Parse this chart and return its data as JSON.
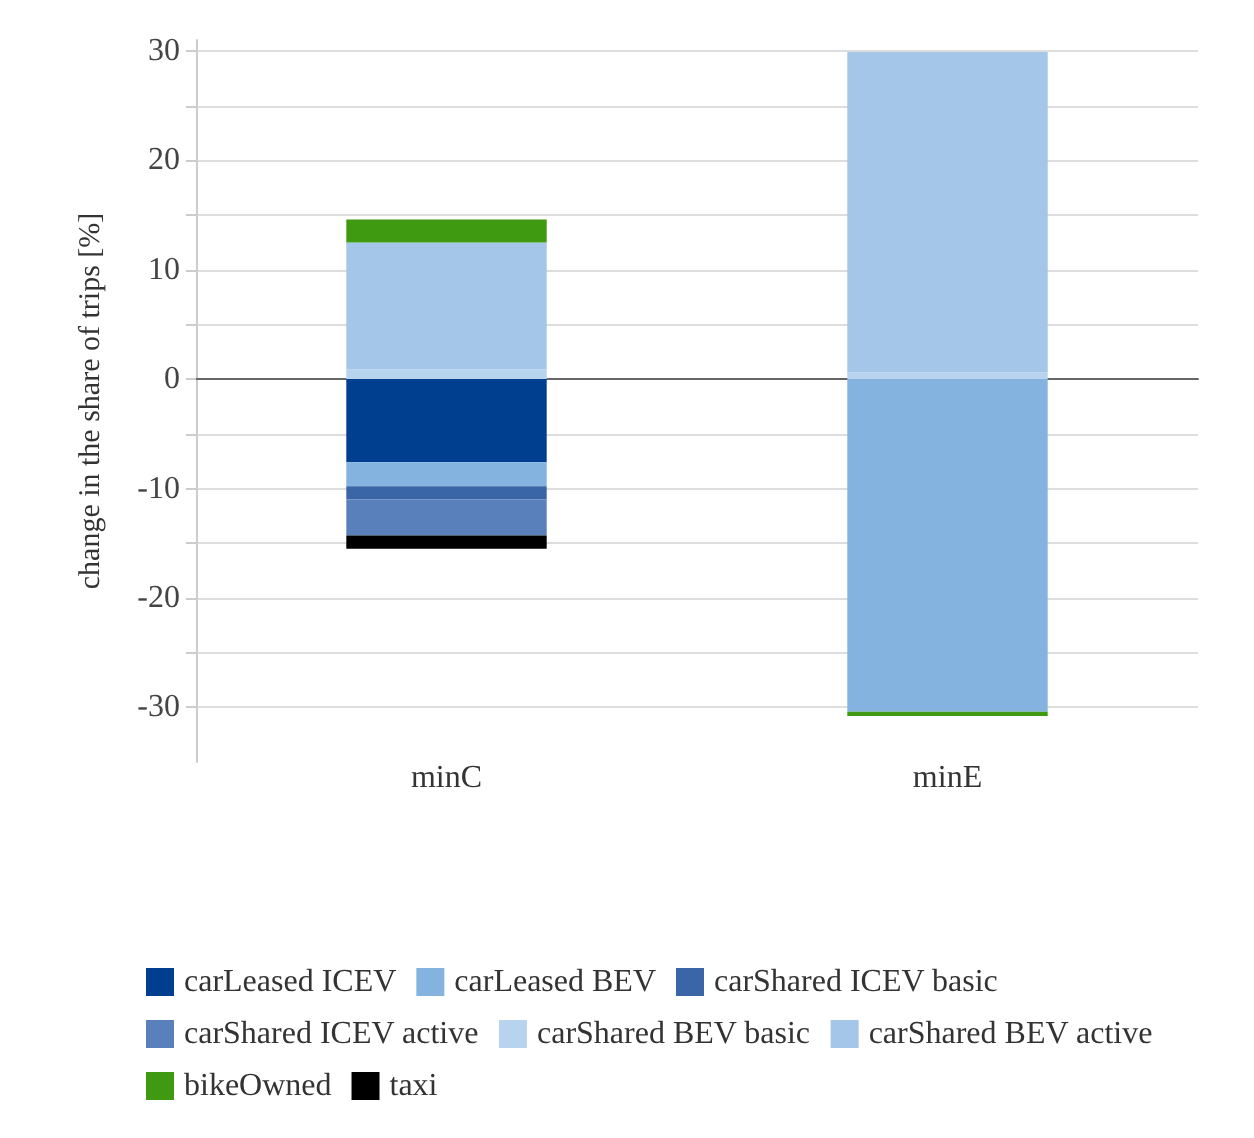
{
  "chart_data": {
    "type": "bar",
    "stacked": true,
    "ylabel": "change in the share of trips [%]",
    "categories": [
      "minC",
      "minE"
    ],
    "series": [
      {
        "name": "carLeased ICEV",
        "color": "#003f8f",
        "values": [
          -7.6,
          0
        ]
      },
      {
        "name": "carLeased BEV",
        "color": "#84b3e0",
        "values": [
          -2.2,
          -30.4
        ]
      },
      {
        "name": "carShared ICEV basic",
        "color": "#3a66a8",
        "values": [
          -1.2,
          0
        ]
      },
      {
        "name": "carShared ICEV active",
        "color": "#5a80bb",
        "values": [
          -3.3,
          0
        ]
      },
      {
        "name": "carShared BEV basic",
        "color": "#b8d3ee",
        "values": [
          0.9,
          0.6
        ]
      },
      {
        "name": "carShared BEV active",
        "color": "#a3c6e9",
        "values": [
          11.6,
          29.3
        ]
      },
      {
        "name": "bikeOwned",
        "color": "#3f9a12",
        "values": [
          2.1,
          -0.4
        ]
      },
      {
        "name": "taxi",
        "color": "#000000",
        "values": [
          -1.2,
          0
        ]
      }
    ],
    "ylim": [
      -35,
      31
    ],
    "yticks": [
      -30,
      {
        "value": -25,
        "label": null
      },
      -20,
      {
        "value": -15,
        "label": null
      },
      -10,
      {
        "value": -5,
        "label": null
      },
      0,
      {
        "value": 5,
        "label": null
      },
      10,
      {
        "value": 15,
        "label": null
      },
      20,
      {
        "value": 25,
        "label": null
      },
      30
    ],
    "grid": "y",
    "legend": "bottom"
  }
}
